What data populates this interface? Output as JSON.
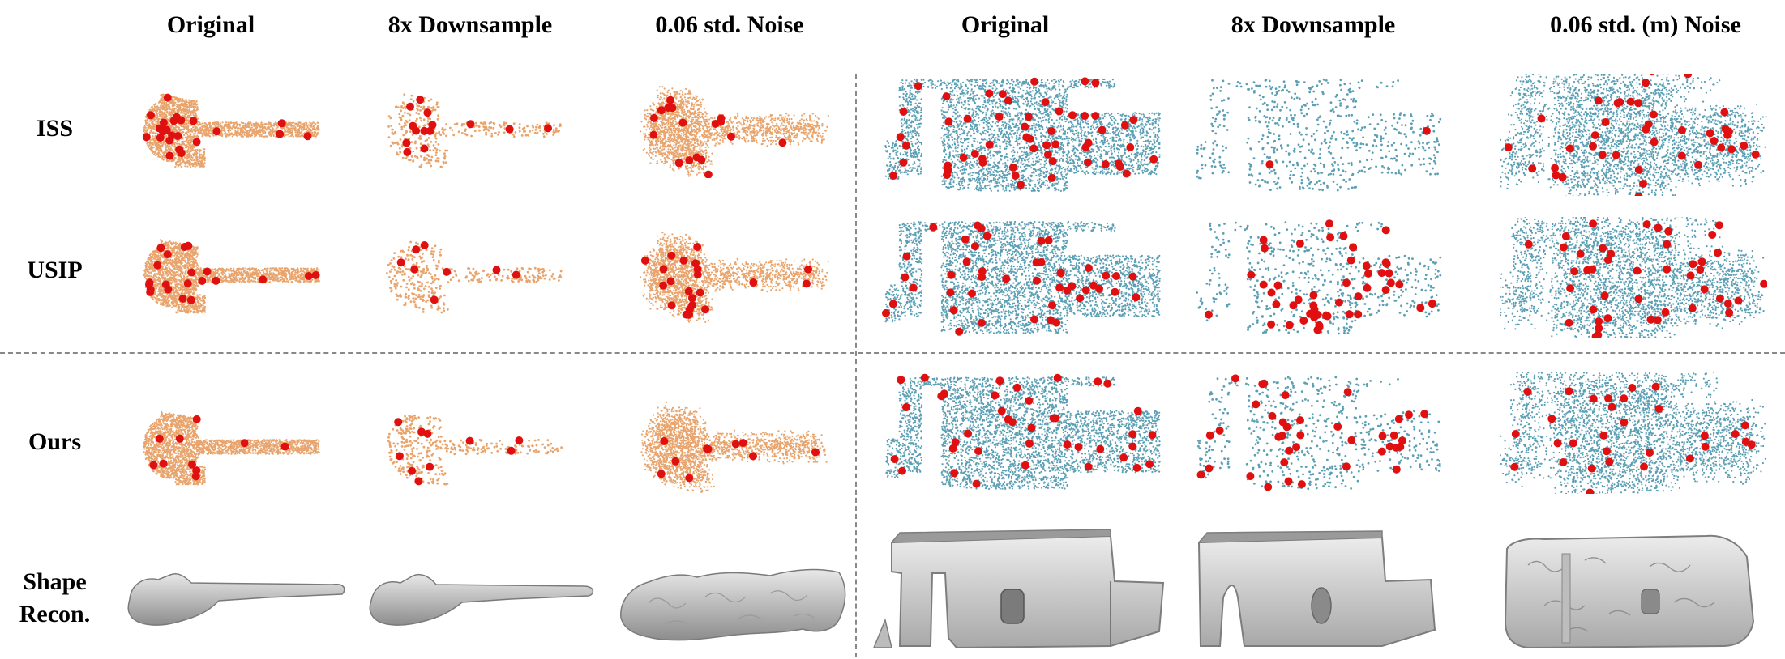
{
  "figure": {
    "column_headers": [
      "Original",
      "8x Downsample",
      "0.06 std. Noise",
      "Original",
      "8x Downsample",
      "0.06 std. (m) Noise"
    ],
    "row_labels": {
      "iss": "ISS",
      "usip": "USIP",
      "ours": "Ours",
      "recon_line1": "Shape",
      "recon_line2": "Recon."
    },
    "colors": {
      "guitar_points": "#e8a46c",
      "scene_points": "#5b9fb4",
      "keypoints": "#e01010",
      "mesh": "#c9c9c9"
    }
  }
}
